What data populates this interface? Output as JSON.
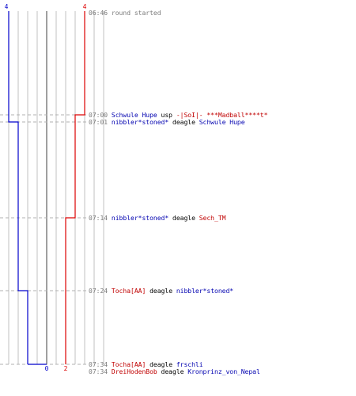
{
  "colors": {
    "team_blue": "#0000cc",
    "team_red": "#dd0000",
    "grid": "#c0c0c0",
    "center_line": "#808080",
    "time_text": "#7a7a7a"
  },
  "chart_data": {
    "type": "line",
    "title": "",
    "xlabel": "",
    "ylabel": "",
    "lanes": 11,
    "x_labels": {
      "top_left": "4",
      "top_right": "4",
      "bottom_mid_blue": "0",
      "bottom_mid_red": "2"
    },
    "series": [
      {
        "name": "",
        "color": "blue",
        "time_values": [
          "06:46",
          "07:01",
          "07:24",
          "07:34"
        ],
        "players_alive": [
          4,
          3,
          2,
          0
        ]
      },
      {
        "name": "",
        "color": "red",
        "time_values": [
          "06:46",
          "07:00",
          "07:14",
          "07:34"
        ],
        "players_alive": [
          4,
          3,
          2,
          2
        ]
      }
    ]
  },
  "events": [
    {
      "time": "06:46",
      "text": "round started",
      "kind": "info"
    },
    {
      "time": "07:00",
      "killer": "Schwule Hupe",
      "killer_team": "blue",
      "weapon": "usp",
      "victim": "-|SoI|- ***Madball****t*",
      "victim_team": "red",
      "kind": "kill"
    },
    {
      "time": "07:01",
      "killer": "nibbler*stoned*",
      "killer_team": "blue",
      "weapon": "deagle",
      "victim": "Schwule Hupe",
      "victim_team": "blue",
      "kind": "kill"
    },
    {
      "time": "07:14",
      "killer": "nibbler*stoned*",
      "killer_team": "blue",
      "weapon": "deagle",
      "victim": "Sech_TM",
      "victim_team": "red",
      "kind": "kill"
    },
    {
      "time": "07:24",
      "killer": "Tocha[AA]",
      "killer_team": "red",
      "weapon": "deagle",
      "victim": "nibbler*stoned*",
      "victim_team": "blue",
      "kind": "kill"
    },
    {
      "time": "07:34",
      "killer": "Tocha[AA]",
      "killer_team": "red",
      "weapon": "deagle",
      "victim": "frschli",
      "victim_team": "blue",
      "kind": "kill"
    },
    {
      "time": "07:34",
      "killer": "DreiHodenBob",
      "killer_team": "red",
      "weapon": "deagle",
      "victim": "Kronprinz_von_Nepal",
      "victim_team": "blue",
      "kind": "kill"
    }
  ]
}
